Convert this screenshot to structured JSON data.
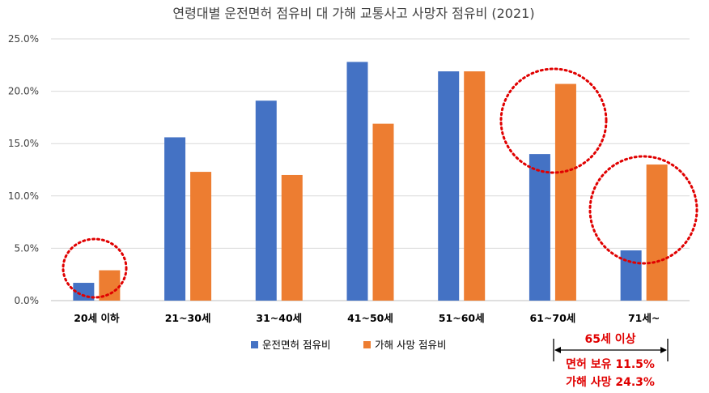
{
  "chart_data": {
    "type": "bar",
    "title": "연령대별 운전면허 점유비 대 가해 교통사고 사망자 점유비 (2021)",
    "xlabel": "",
    "ylabel": "",
    "ylim": [
      0,
      25
    ],
    "yticks": [
      "0.0%",
      "5.0%",
      "10.0%",
      "15.0%",
      "20.0%",
      "25.0%"
    ],
    "grid": true,
    "legend": "bottom",
    "categories": [
      "20세 이하",
      "21~30세",
      "31~40세",
      "41~50세",
      "51~60세",
      "61~70세",
      "71세~"
    ],
    "series": [
      {
        "name": "운전면허 점유비",
        "color": "#4472c4",
        "values": [
          1.7,
          15.6,
          19.1,
          22.8,
          21.9,
          14.0,
          4.8
        ]
      },
      {
        "name": "가해 사망 점유비",
        "color": "#ed7d31",
        "values": [
          2.9,
          12.3,
          12.0,
          16.9,
          21.9,
          20.7,
          13.0
        ]
      }
    ],
    "annotations": {
      "group_label": "65세 이상",
      "line1": "면허 보유 11.5%",
      "line2": "가해 사망 24.3%",
      "highlight_color": "#e00000"
    }
  }
}
